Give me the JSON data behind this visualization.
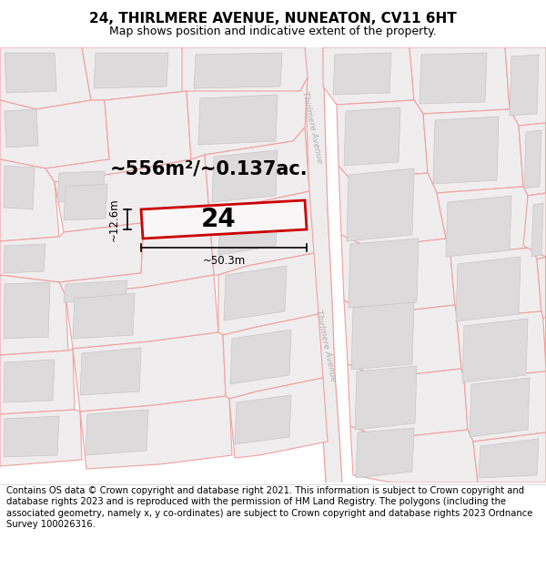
{
  "title": "24, THIRLMERE AVENUE, NUNEATON, CV11 6HT",
  "subtitle": "Map shows position and indicative extent of the property.",
  "footer": "Contains OS data © Crown copyright and database right 2021. This information is subject to Crown copyright and database rights 2023 and is reproduced with the permission of HM Land Registry. The polygons (including the associated geometry, namely x, y co-ordinates) are subject to Crown copyright and database rights 2023 Ordnance Survey 100026316.",
  "road_label": "Thirlmere Avenue",
  "property_number": "24",
  "area_text": "~556m²/~0.137ac.",
  "width_text": "~50.3m",
  "height_text": "~12.6m",
  "title_fontsize": 11,
  "subtitle_fontsize": 9,
  "footer_fontsize": 7.2,
  "area_fontsize": 15,
  "number_fontsize": 20,
  "measure_fontsize": 8.5,
  "road_label_fontsize": 6.5,
  "bg_color": "#ffffff",
  "map_bg": "#f7f5f5",
  "parcel_face": "#f0edee",
  "parcel_edge": "#f0a0a0",
  "building_face": "#dcdada",
  "building_edge": "#c8c6c6",
  "prop_edge": "#cc0000",
  "prop_face": "#f8f6f6",
  "road_label_color": "#b0aeae"
}
